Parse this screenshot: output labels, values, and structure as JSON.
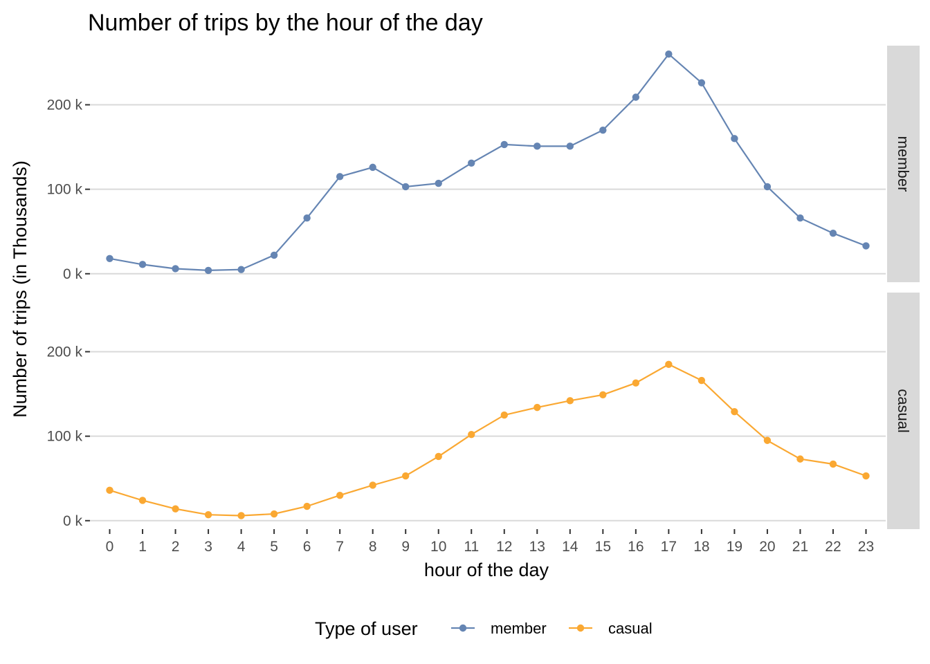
{
  "chart_data": {
    "type": "line",
    "title": "Number of trips by the hour of the day",
    "xlabel": "hour of the day",
    "ylabel": "Number of trips (in Thousands)",
    "x": [
      0,
      1,
      2,
      3,
      4,
      5,
      6,
      7,
      8,
      9,
      10,
      11,
      12,
      13,
      14,
      15,
      16,
      17,
      18,
      19,
      20,
      21,
      22,
      23
    ],
    "ylim": [
      0,
      260
    ],
    "yticks": [
      0,
      100,
      200
    ],
    "ytick_labels": [
      "0 k",
      "100 k",
      "200 k"
    ],
    "grid": true,
    "legend": {
      "title": "Type of user",
      "position": "bottom"
    },
    "series": [
      {
        "name": "member",
        "color": "#6585b3",
        "values": [
          18,
          11,
          6,
          4,
          5,
          22,
          66,
          115,
          126,
          103,
          107,
          131,
          153,
          151,
          151,
          170,
          209,
          260,
          226,
          160,
          103,
          66,
          48,
          33
        ]
      },
      {
        "name": "casual",
        "color": "#faa832",
        "values": [
          36,
          24,
          14,
          7,
          6,
          8,
          17,
          30,
          42,
          53,
          76,
          102,
          125,
          134,
          142,
          149,
          163,
          185,
          166,
          129,
          95,
          73,
          67,
          53
        ]
      }
    ]
  }
}
